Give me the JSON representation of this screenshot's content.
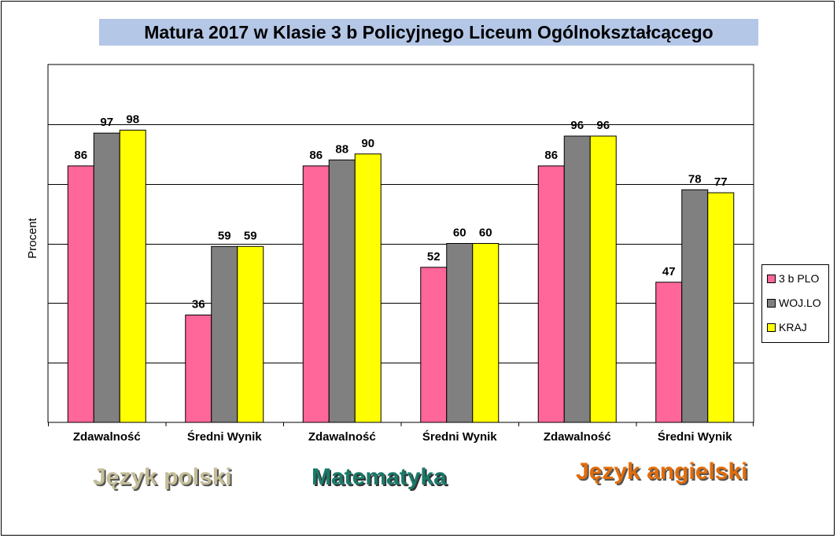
{
  "chart_data": {
    "type": "bar",
    "title": "Matura 2017  w Klasie 3 b Policyjnego Liceum Ogólnokształcącego",
    "ylabel": "Procent",
    "xlabel": "",
    "ylim": [
      0,
      120
    ],
    "grid": true,
    "legend_position": "right",
    "categories": [
      "Zdawalność",
      "Średni Wynik",
      "Zdawalność",
      "Średni Wynik",
      "Zdawalność",
      "Średni Wynik"
    ],
    "series": [
      {
        "name": "3 b PLO",
        "color": "#ff6699",
        "values": [
          86,
          36,
          86,
          52,
          86,
          47
        ]
      },
      {
        "name": "WOJ.LO",
        "color": "#808080",
        "values": [
          97,
          59,
          88,
          60,
          96,
          78
        ]
      },
      {
        "name": "KRAJ",
        "color": "#ffff00",
        "values": [
          98,
          59,
          90,
          60,
          96,
          77
        ]
      }
    ],
    "subject_labels": [
      {
        "text": "Język polski",
        "color": "#c4bd97"
      },
      {
        "text": "Matematyka",
        "color": "#1a7a6a"
      },
      {
        "text": "Język angielski",
        "color": "#e36c09"
      }
    ]
  }
}
